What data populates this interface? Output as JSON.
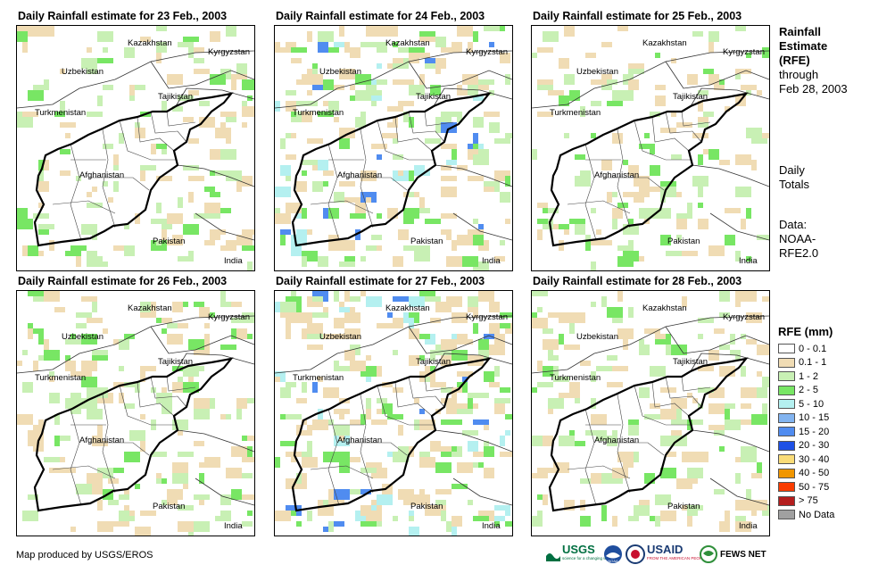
{
  "panels": [
    {
      "title": "Daily Rainfall estimate for 23 Feb., 2003",
      "rain_level": 1
    },
    {
      "title": "Daily Rainfall estimate for 24 Feb., 2003",
      "rain_level": 3
    },
    {
      "title": "Daily Rainfall estimate for 25 Feb., 2003",
      "rain_level": 1
    },
    {
      "title": "Daily Rainfall estimate for 26 Feb., 2003",
      "rain_level": 2
    },
    {
      "title": "Daily Rainfall estimate for 27 Feb., 2003",
      "rain_level": 4
    },
    {
      "title": "Daily Rainfall estimate for 28 Feb., 2003",
      "rain_level": 2
    }
  ],
  "countries": {
    "kazakhstan": "Kazakhstan",
    "kyrgyzstan": "Kyrgyzstan",
    "uzbekistan": "Uzbekistan",
    "tajikistan": "Tajikistan",
    "turkmenistan": "Turkmenistan",
    "afghanistan": "Afghanistan",
    "pakistan": "Pakistan",
    "india": "India"
  },
  "info": {
    "line1": "Rainfall",
    "line2": "Estimate",
    "line3": "(RFE)",
    "line4": "through",
    "line5": "Feb 28, 2003",
    "daily1": "Daily",
    "daily2": "Totals",
    "data1": "Data:",
    "data2": "NOAA-",
    "data3": "RFE2.0"
  },
  "legend": {
    "title": "RFE (mm)",
    "items": [
      {
        "label": "0 - 0.1",
        "color": "#ffffff"
      },
      {
        "label": "0.1 - 1",
        "color": "#f0dcb4"
      },
      {
        "label": "1 - 2",
        "color": "#c8f0b4"
      },
      {
        "label": "2 - 5",
        "color": "#78e664"
      },
      {
        "label": "5 - 10",
        "color": "#b4f0f0"
      },
      {
        "label": "10 - 15",
        "color": "#82b4f0"
      },
      {
        "label": "15 - 20",
        "color": "#508cf0"
      },
      {
        "label": "20 - 30",
        "color": "#1e50e6"
      },
      {
        "label": "30 - 40",
        "color": "#fadc78"
      },
      {
        "label": "40 - 50",
        "color": "#f09600"
      },
      {
        "label": "50 - 75",
        "color": "#fa3c00"
      },
      {
        "label": "> 75",
        "color": "#b41e1e"
      },
      {
        "label": "No Data",
        "color": "#a0a0a0"
      }
    ]
  },
  "credit": "Map produced by USGS/EROS",
  "logos": {
    "usgs": "USGS",
    "usgs_tag": "science for a changing world",
    "noaa": "NOAA",
    "usaid": "USAID",
    "usaid_tag": "FROM THE AMERICAN PEOPLE",
    "fews": "FEWS NET"
  }
}
